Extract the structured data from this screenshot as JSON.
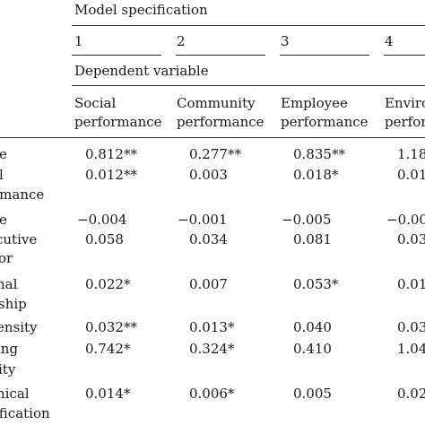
{
  "table": {
    "title": "Model specification",
    "model_numbers": [
      "1",
      "2",
      "3",
      "4"
    ],
    "dependent_label": "Dependent variable",
    "columns": [
      {
        "line1": "Social",
        "line2": "performance"
      },
      {
        "line1": "Community",
        "line2": "performance"
      },
      {
        "line1": "Employee",
        "line2": "performance"
      },
      {
        "line1": "Enviro",
        "line2": "perfor"
      }
    ],
    "rows": [
      {
        "label": [
          "e"
        ],
        "values": [
          "0.812**",
          "0.277**",
          "0.835**",
          "1.18"
        ]
      },
      {
        "label": [
          "l",
          "rmance"
        ],
        "values": [
          "0.012**",
          "0.003",
          "0.018*",
          "0.01"
        ]
      },
      {
        "label": [
          "e"
        ],
        "values": [
          "−0.004",
          "−0.001",
          "−0.005",
          "−0.00"
        ]
      },
      {
        "label": [
          "cutive",
          "or"
        ],
        "values": [
          "0.058",
          "0.034",
          "0.081",
          "0.03"
        ]
      },
      {
        "label": [
          "nal",
          "ship"
        ],
        "values": [
          "0.022*",
          "0.007",
          "0.053*",
          "0.01"
        ]
      },
      {
        "label": [
          "ensity"
        ],
        "values": [
          "0.032**",
          "0.013*",
          "0.040",
          "0.03"
        ]
      },
      {
        "label": [
          "ing",
          "ity"
        ],
        "values": [
          "0.742*",
          "0.324*",
          "0.410",
          "1.04"
        ]
      },
      {
        "label": [
          "hical",
          "ification"
        ],
        "values": [
          "0.014*",
          "0.006*",
          "0.005",
          "0.02"
        ]
      }
    ]
  }
}
